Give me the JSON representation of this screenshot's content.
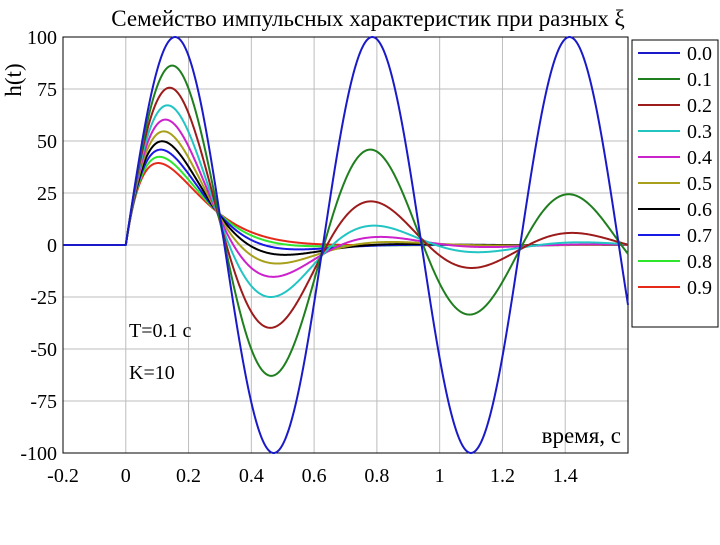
{
  "chart_data": {
    "type": "line",
    "title": "Семейство импульсных характеристик при разных ξ",
    "xlabel": "время, с",
    "ylabel": "h(t)",
    "xlim": [
      -0.2,
      1.6
    ],
    "ylim": [
      -100,
      100
    ],
    "xticks": [
      -0.2,
      0,
      0.2,
      0.4,
      0.6,
      0.8,
      1,
      1.2,
      1.4
    ],
    "xtick_labels": [
      "-0.2",
      "0",
      "0.2",
      "0.4",
      "0.6",
      "0.8",
      "1",
      "1.2",
      "1.4"
    ],
    "yticks": [
      100,
      75,
      50,
      25,
      0,
      -25,
      -50,
      -75,
      -100
    ],
    "ytick_labels": [
      "100",
      "75",
      "50",
      "25",
      "0",
      "-25",
      "-50",
      "-75",
      "-100"
    ],
    "grid": true,
    "legend_position": "right",
    "annotations": [
      "T=0.1 с",
      "K=10"
    ],
    "model": {
      "K": 10,
      "T": 0.1,
      "t_start": 0,
      "t_end": 1.6
    },
    "series": [
      {
        "name": "0.0",
        "xi": 0.0,
        "color": "#1a1ac8"
      },
      {
        "name": "0.1",
        "xi": 0.1,
        "color": "#1f7f1f"
      },
      {
        "name": "0.2",
        "xi": 0.2,
        "color": "#9c1b1b"
      },
      {
        "name": "0.3",
        "xi": 0.3,
        "color": "#22c4c4"
      },
      {
        "name": "0.4",
        "xi": 0.4,
        "color": "#cc22cc"
      },
      {
        "name": "0.5",
        "xi": 0.5,
        "color": "#a8a01a"
      },
      {
        "name": "0.6",
        "xi": 0.6,
        "color": "#000000"
      },
      {
        "name": "0.7",
        "xi": 0.7,
        "color": "#1a1ae6"
      },
      {
        "name": "0.8",
        "xi": 0.8,
        "color": "#2ee62e"
      },
      {
        "name": "0.9",
        "xi": 0.9,
        "color": "#e62a1a"
      }
    ]
  }
}
